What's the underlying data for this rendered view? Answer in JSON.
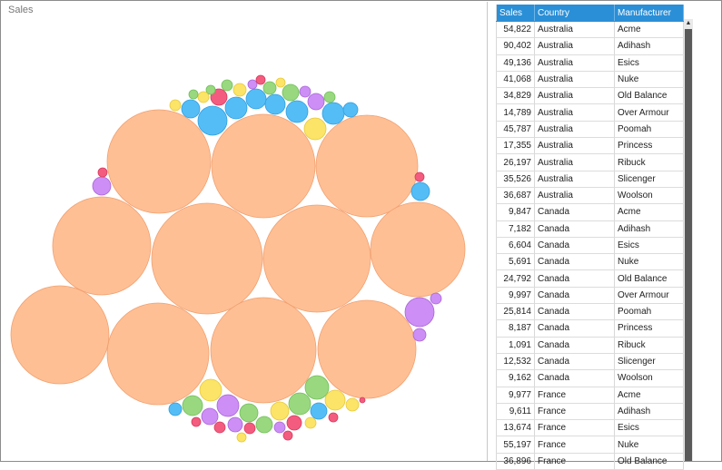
{
  "chart": {
    "title": "Sales"
  },
  "table": {
    "headers": [
      "Sales",
      "Country",
      "Manufacturer"
    ],
    "rows": [
      [
        "54,822",
        "Australia",
        "Acme"
      ],
      [
        "90,402",
        "Australia",
        "Adihash"
      ],
      [
        "49,136",
        "Australia",
        "Esics"
      ],
      [
        "41,068",
        "Australia",
        "Nuke"
      ],
      [
        "34,829",
        "Australia",
        "Old Balance"
      ],
      [
        "14,789",
        "Australia",
        "Over Armour"
      ],
      [
        "45,787",
        "Australia",
        "Poomah"
      ],
      [
        "17,355",
        "Australia",
        "Princess"
      ],
      [
        "26,197",
        "Australia",
        "Ribuck"
      ],
      [
        "35,526",
        "Australia",
        "Slicenger"
      ],
      [
        "36,687",
        "Australia",
        "Woolson"
      ],
      [
        "9,847",
        "Canada",
        "Acme"
      ],
      [
        "7,182",
        "Canada",
        "Adihash"
      ],
      [
        "6,604",
        "Canada",
        "Esics"
      ],
      [
        "5,691",
        "Canada",
        "Nuke"
      ],
      [
        "24,792",
        "Canada",
        "Old Balance"
      ],
      [
        "9,997",
        "Canada",
        "Over Armour"
      ],
      [
        "25,814",
        "Canada",
        "Poomah"
      ],
      [
        "8,187",
        "Canada",
        "Princess"
      ],
      [
        "1,091",
        "Canada",
        "Ribuck"
      ],
      [
        "12,532",
        "Canada",
        "Slicenger"
      ],
      [
        "9,162",
        "Canada",
        "Woolson"
      ],
      [
        "9,977",
        "France",
        "Acme"
      ],
      [
        "9,611",
        "France",
        "Adihash"
      ],
      [
        "13,674",
        "France",
        "Esics"
      ],
      [
        "55,197",
        "France",
        "Nuke"
      ],
      [
        "36,896",
        "France",
        "Old Balance"
      ]
    ]
  },
  "colors": {
    "large": "#ffbf94",
    "blue": "#55bdf6",
    "yellow": "#fbe467",
    "green": "#99d87f",
    "pink": "#f35c7e",
    "purple": "#cd8ef5",
    "header": "#2a8fd6"
  }
}
